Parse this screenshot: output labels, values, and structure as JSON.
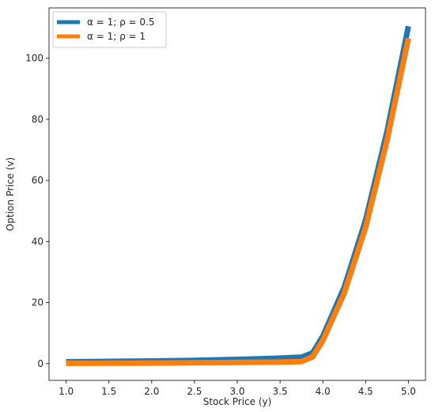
{
  "chart_data": {
    "type": "line",
    "title": "",
    "xlabel": "Stock Price (y)",
    "ylabel": "Option Price (v)",
    "xlim": [
      0.8,
      5.2
    ],
    "ylim": [
      -5.5,
      116.5
    ],
    "xticks": [
      1.0,
      1.5,
      2.0,
      2.5,
      3.0,
      3.5,
      4.0,
      4.5,
      5.0
    ],
    "xtick_labels": [
      "1.0",
      "1.5",
      "2.0",
      "2.5",
      "3.0",
      "3.5",
      "4.0",
      "4.5",
      "5.0"
    ],
    "yticks": [
      0,
      20,
      40,
      60,
      80,
      100
    ],
    "ytick_labels": [
      "0",
      "20",
      "40",
      "60",
      "80",
      "100"
    ],
    "grid": false,
    "legend_position": "top-left",
    "x": [
      1.0,
      1.25,
      1.5,
      1.75,
      2.0,
      2.25,
      2.5,
      2.75,
      3.0,
      3.25,
      3.5,
      3.75,
      3.88,
      4.0,
      4.25,
      4.5,
      4.75,
      5.0
    ],
    "series": [
      {
        "name": "α = 1; ρ = 0.5",
        "color": "#1f77b4",
        "values": [
          0.6,
          0.65,
          0.7,
          0.78,
          0.85,
          0.95,
          1.05,
          1.2,
          1.35,
          1.55,
          1.8,
          2.1,
          3.5,
          9.0,
          25.0,
          47.0,
          76.0,
          110.5
        ]
      },
      {
        "name": "α = 1; ρ = 1",
        "color": "#ff7f0e",
        "values": [
          0.1,
          0.1,
          0.12,
          0.15,
          0.18,
          0.2,
          0.25,
          0.3,
          0.35,
          0.42,
          0.5,
          0.65,
          2.2,
          7.5,
          23.0,
          44.5,
          73.0,
          106.5
        ]
      }
    ]
  }
}
